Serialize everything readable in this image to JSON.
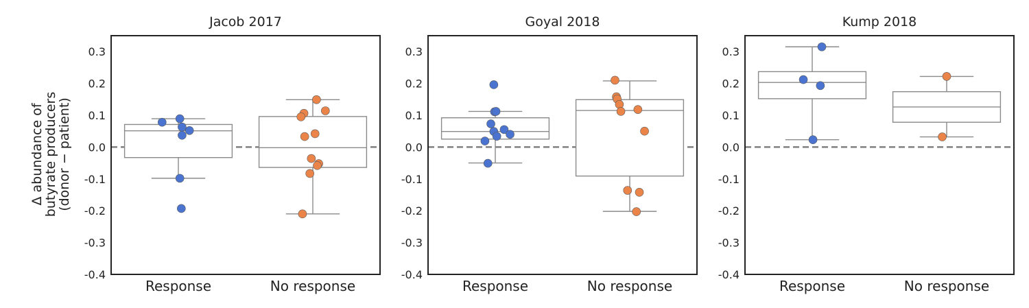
{
  "figure": {
    "ylabel_lines": [
      "Δ abundance of",
      "butyrate producers",
      "(donor − patient)"
    ]
  },
  "colors": {
    "response": "#4a74d0",
    "no_response": "#ea8449",
    "box_line": "#8a8a8a",
    "zero_line": "#808080",
    "axes": "#222222"
  },
  "chart_data": [
    {
      "type": "box",
      "title": "Jacob 2017",
      "categories": [
        "Response",
        "No response"
      ],
      "ylim": [
        -0.4,
        0.35
      ],
      "yticks": [
        "-0.4",
        "-0.3",
        "-0.2",
        "-0.1",
        "0.0",
        "0.1",
        "0.2",
        "0.3"
      ],
      "reference_line": 0.0,
      "boxes": [
        {
          "q1": -0.033,
          "median": 0.051,
          "q3": 0.071,
          "whisker_low": -0.098,
          "whisker_high": 0.089
        },
        {
          "q1": -0.064,
          "median": -0.002,
          "q3": 0.096,
          "whisker_low": -0.21,
          "whisker_high": 0.149
        }
      ],
      "series": [
        {
          "name": "Response",
          "category": 0,
          "points": [
            {
              "j": -0.22,
              "y": 0.078
            },
            {
              "j": 0.02,
              "y": 0.089
            },
            {
              "j": 0.05,
              "y": 0.063
            },
            {
              "j": 0.15,
              "y": 0.052
            },
            {
              "j": 0.05,
              "y": 0.037
            },
            {
              "j": 0.02,
              "y": -0.098
            },
            {
              "j": 0.04,
              "y": -0.193
            }
          ]
        },
        {
          "name": "No response",
          "category": 1,
          "points": [
            {
              "j": 0.05,
              "y": 0.149
            },
            {
              "j": -0.12,
              "y": 0.106
            },
            {
              "j": 0.17,
              "y": 0.114
            },
            {
              "j": -0.16,
              "y": 0.095
            },
            {
              "j": 0.03,
              "y": 0.042
            },
            {
              "j": -0.11,
              "y": 0.033
            },
            {
              "j": -0.02,
              "y": -0.036
            },
            {
              "j": 0.08,
              "y": -0.052
            },
            {
              "j": 0.06,
              "y": -0.058
            },
            {
              "j": -0.04,
              "y": -0.083
            },
            {
              "j": -0.14,
              "y": -0.21
            }
          ]
        }
      ]
    },
    {
      "type": "box",
      "title": "Goyal 2018",
      "categories": [
        "Response",
        "No response"
      ],
      "ylim": [
        -0.4,
        0.35
      ],
      "yticks": [
        "-0.4",
        "-0.3",
        "-0.2",
        "-0.1",
        "0.0",
        "0.1",
        "0.2",
        "0.3"
      ],
      "reference_line": 0.0,
      "boxes": [
        {
          "q1": 0.025,
          "median": 0.049,
          "q3": 0.092,
          "whisker_low": -0.05,
          "whisker_high": 0.112
        },
        {
          "q1": -0.091,
          "median": 0.115,
          "q3": 0.149,
          "whisker_low": -0.202,
          "whisker_high": 0.208
        }
      ],
      "series": [
        {
          "name": "Response",
          "category": 0,
          "points": [
            {
              "j": -0.02,
              "y": 0.196
            },
            {
              "j": -0.01,
              "y": 0.111
            },
            {
              "j": 0.01,
              "y": 0.112
            },
            {
              "j": -0.06,
              "y": 0.073
            },
            {
              "j": 0.12,
              "y": 0.055
            },
            {
              "j": -0.02,
              "y": 0.049
            },
            {
              "j": 0.2,
              "y": 0.04
            },
            {
              "j": 0.02,
              "y": 0.034
            },
            {
              "j": -0.14,
              "y": 0.019
            },
            {
              "j": -0.1,
              "y": -0.051
            }
          ]
        },
        {
          "name": "No response",
          "category": 1,
          "points": [
            {
              "j": -0.2,
              "y": 0.21
            },
            {
              "j": -0.18,
              "y": 0.158
            },
            {
              "j": -0.17,
              "y": 0.151
            },
            {
              "j": -0.14,
              "y": 0.134
            },
            {
              "j": 0.11,
              "y": 0.118
            },
            {
              "j": -0.12,
              "y": 0.112
            },
            {
              "j": 0.2,
              "y": 0.05
            },
            {
              "j": -0.03,
              "y": -0.136
            },
            {
              "j": 0.13,
              "y": -0.142
            },
            {
              "j": 0.09,
              "y": -0.203
            }
          ]
        }
      ]
    },
    {
      "type": "box",
      "title": "Kump 2018",
      "categories": [
        "Response",
        "No response"
      ],
      "ylim": [
        -0.4,
        0.35
      ],
      "yticks": [
        "-0.4",
        "-0.3",
        "-0.2",
        "-0.1",
        "0.0",
        "0.1",
        "0.2",
        "0.3"
      ],
      "reference_line": 0.0,
      "boxes": [
        {
          "q1": 0.152,
          "median": 0.203,
          "q3": 0.237,
          "whisker_low": 0.023,
          "whisker_high": 0.315
        },
        {
          "q1": 0.078,
          "median": 0.126,
          "q3": 0.174,
          "whisker_low": 0.032,
          "whisker_high": 0.222
        }
      ],
      "series": [
        {
          "name": "Response",
          "category": 0,
          "points": [
            {
              "j": 0.13,
              "y": 0.315
            },
            {
              "j": -0.12,
              "y": 0.212
            },
            {
              "j": 0.11,
              "y": 0.193
            },
            {
              "j": 0.01,
              "y": 0.023
            }
          ]
        },
        {
          "name": "No response",
          "category": 1,
          "points": [
            {
              "j": 0.0,
              "y": 0.222
            },
            {
              "j": -0.06,
              "y": 0.032
            }
          ]
        }
      ]
    }
  ]
}
